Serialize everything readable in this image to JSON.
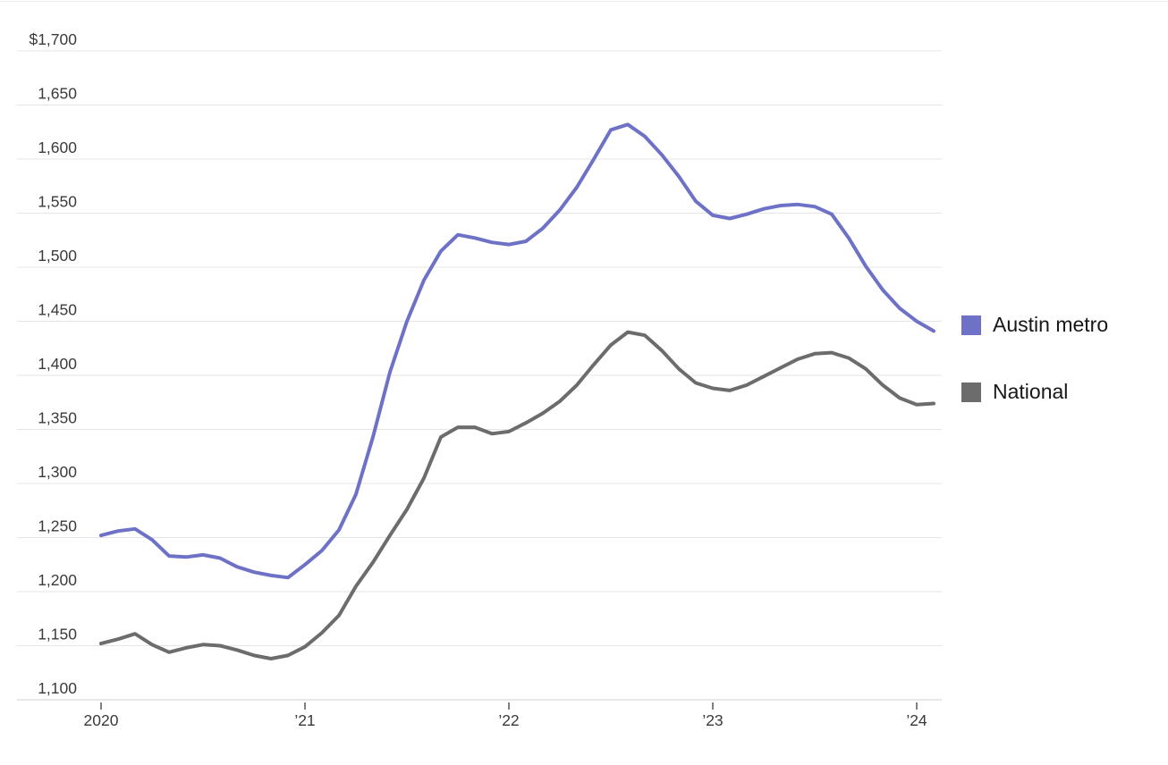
{
  "chart_data": {
    "type": "line",
    "title": "",
    "unit": "$ per month",
    "grid": true,
    "legend_position": "right",
    "ylim": [
      1100,
      1700
    ],
    "y_ticks": [
      {
        "value": 1700,
        "label": "$1,700"
      },
      {
        "value": 1650,
        "label": "1,650"
      },
      {
        "value": 1600,
        "label": "1,600"
      },
      {
        "value": 1550,
        "label": "1,550"
      },
      {
        "value": 1500,
        "label": "1,500"
      },
      {
        "value": 1450,
        "label": "1,450"
      },
      {
        "value": 1400,
        "label": "1,400"
      },
      {
        "value": 1350,
        "label": "1,350"
      },
      {
        "value": 1300,
        "label": "1,300"
      },
      {
        "value": 1250,
        "label": "1,250"
      },
      {
        "value": 1200,
        "label": "1,200"
      },
      {
        "value": 1150,
        "label": "1,150"
      },
      {
        "value": 1100,
        "label": "1,100"
      }
    ],
    "x_ticks": [
      {
        "index": 0,
        "label": "2020"
      },
      {
        "index": 12,
        "label": "’21"
      },
      {
        "index": 24,
        "label": "’22"
      },
      {
        "index": 36,
        "label": "’23"
      },
      {
        "index": 48,
        "label": "’24"
      }
    ],
    "x_monthly": [
      "2020-01",
      "2020-02",
      "2020-03",
      "2020-04",
      "2020-05",
      "2020-06",
      "2020-07",
      "2020-08",
      "2020-09",
      "2020-10",
      "2020-11",
      "2020-12",
      "2021-01",
      "2021-02",
      "2021-03",
      "2021-04",
      "2021-05",
      "2021-06",
      "2021-07",
      "2021-08",
      "2021-09",
      "2021-10",
      "2021-11",
      "2021-12",
      "2022-01",
      "2022-02",
      "2022-03",
      "2022-04",
      "2022-05",
      "2022-06",
      "2022-07",
      "2022-08",
      "2022-09",
      "2022-10",
      "2022-11",
      "2022-12",
      "2023-01",
      "2023-02",
      "2023-03",
      "2023-04",
      "2023-05",
      "2023-06",
      "2023-07",
      "2023-08",
      "2023-09",
      "2023-10",
      "2023-11",
      "2023-12",
      "2024-01",
      "2024-02"
    ],
    "series": [
      {
        "name": "Austin metro",
        "color": "#6e72c7",
        "values": [
          1252,
          1256,
          1258,
          1248,
          1233,
          1232,
          1234,
          1231,
          1223,
          1218,
          1215,
          1213,
          1225,
          1238,
          1257,
          1290,
          1343,
          1403,
          1450,
          1488,
          1515,
          1530,
          1527,
          1523,
          1521,
          1524,
          1536,
          1553,
          1574,
          1600,
          1627,
          1632,
          1621,
          1604,
          1584,
          1561,
          1548,
          1545,
          1549,
          1554,
          1557,
          1558,
          1556,
          1549,
          1527,
          1501,
          1479,
          1462,
          1450,
          1441
        ]
      },
      {
        "name": "National",
        "color": "#6c6c6c",
        "values": [
          1152,
          1156,
          1161,
          1151,
          1144,
          1148,
          1151,
          1150,
          1146,
          1141,
          1138,
          1141,
          1149,
          1162,
          1178,
          1205,
          1227,
          1252,
          1276,
          1305,
          1343,
          1352,
          1352,
          1346,
          1348,
          1356,
          1365,
          1376,
          1391,
          1410,
          1428,
          1440,
          1437,
          1423,
          1406,
          1393,
          1388,
          1386,
          1391,
          1399,
          1407,
          1415,
          1420,
          1421,
          1416,
          1406,
          1391,
          1379,
          1373,
          1374
        ]
      }
    ]
  },
  "legend": {
    "items": [
      {
        "label": "Austin metro",
        "color": "#6e72c7"
      },
      {
        "label": "National",
        "color": "#6c6c6c"
      }
    ]
  },
  "style_colors": {
    "gridline": "#e5e5e5",
    "axis_line": "#cfcfcf",
    "tick_mark": "#575757",
    "axis_text": "#3a3a3a"
  }
}
